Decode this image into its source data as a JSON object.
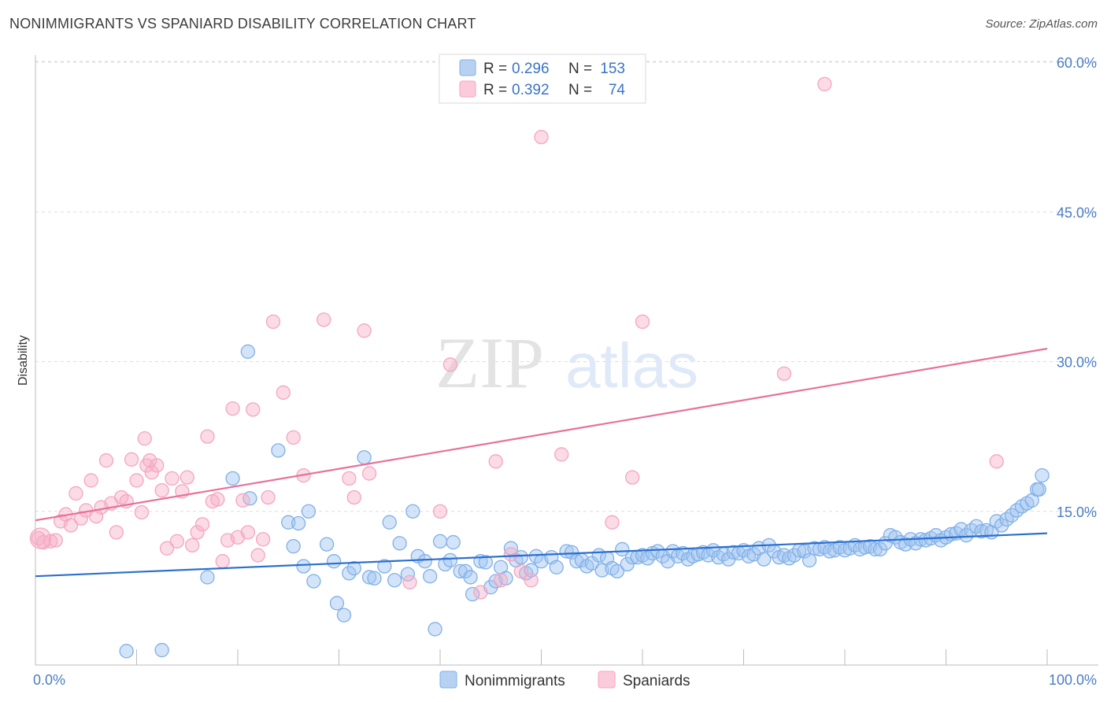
{
  "header": {
    "title": "NONIMMIGRANTS VS SPANIARD DISABILITY CORRELATION CHART",
    "source": "Source: ZipAtlas.com"
  },
  "watermark": {
    "zip": "ZIP",
    "atlas": "atlas"
  },
  "chart_data": {
    "type": "scatter",
    "title": "NONIMMIGRANTS VS SPANIARD DISABILITY CORRELATION CHART",
    "xlabel": "",
    "ylabel": "Disability",
    "xlim": [
      0,
      100
    ],
    "ylim": [
      0,
      63
    ],
    "x_tick_labels": [
      "0.0%",
      "100.0%"
    ],
    "y_ticks": [
      15,
      30,
      45,
      60
    ],
    "y_tick_labels": [
      "15.0%",
      "30.0%",
      "45.0%",
      "60.0%"
    ],
    "grid": true,
    "legend_placement": "top-center",
    "stats": [
      {
        "r_label": "R = ",
        "r": "0.296",
        "n_label": "N = ",
        "n": "153"
      },
      {
        "r_label": "R = ",
        "r": "0.392",
        "n_label": "N = ",
        "n": "74"
      }
    ],
    "series": [
      {
        "name": "Nonimmigrants",
        "color": "#7fb0e8",
        "line_color": "#2b6fd0",
        "trend": [
          [
            0,
            8.5
          ],
          [
            100,
            12.8
          ]
        ],
        "points": [
          [
            9,
            1
          ],
          [
            12.5,
            1.1
          ],
          [
            17,
            8.4
          ],
          [
            19.5,
            18.3
          ],
          [
            21,
            31
          ],
          [
            21.2,
            16.3
          ],
          [
            24,
            21.1
          ],
          [
            25,
            13.9
          ],
          [
            25.5,
            11.5
          ],
          [
            26,
            13.8
          ],
          [
            26.5,
            9.5
          ],
          [
            27,
            15
          ],
          [
            27.5,
            8
          ],
          [
            28.8,
            11.7
          ],
          [
            29.5,
            10
          ],
          [
            29.8,
            5.8
          ],
          [
            30.5,
            4.6
          ],
          [
            31,
            8.8
          ],
          [
            31.5,
            9.3
          ],
          [
            32.5,
            20.4
          ],
          [
            33,
            8.4
          ],
          [
            33.5,
            8.3
          ],
          [
            34.5,
            9.5
          ],
          [
            35,
            13.9
          ],
          [
            35.5,
            8.1
          ],
          [
            36,
            11.8
          ],
          [
            36.8,
            8.7
          ],
          [
            37.3,
            15
          ],
          [
            37.8,
            10.5
          ],
          [
            38.5,
            10
          ],
          [
            39,
            8.5
          ],
          [
            39.5,
            3.2
          ],
          [
            40,
            12
          ],
          [
            40.5,
            9.7
          ],
          [
            41,
            10.1
          ],
          [
            41.3,
            11.9
          ],
          [
            42,
            9
          ],
          [
            42.5,
            9
          ],
          [
            43,
            8.4
          ],
          [
            43.2,
            6.7
          ],
          [
            44,
            10
          ],
          [
            44.5,
            9.9
          ],
          [
            45,
            7.4
          ],
          [
            45.5,
            8
          ],
          [
            46,
            9.4
          ],
          [
            46.5,
            8.3
          ],
          [
            47,
            11.3
          ],
          [
            47.5,
            10.1
          ],
          [
            48,
            10.4
          ],
          [
            48.5,
            8.8
          ],
          [
            49,
            9.1
          ],
          [
            49.5,
            10.5
          ],
          [
            50,
            10
          ],
          [
            51,
            10.4
          ],
          [
            51.5,
            9.4
          ],
          [
            52.5,
            11
          ],
          [
            53,
            10.9
          ],
          [
            53.5,
            10
          ],
          [
            54,
            10.1
          ],
          [
            54.5,
            9.5
          ],
          [
            55,
            9.8
          ],
          [
            55.7,
            10.6
          ],
          [
            56,
            9.1
          ],
          [
            56.5,
            10.3
          ],
          [
            57,
            9.3
          ],
          [
            57.5,
            9
          ],
          [
            58,
            11.2
          ],
          [
            58.5,
            9.7
          ],
          [
            59,
            10.4
          ],
          [
            59.5,
            10.4
          ],
          [
            60,
            10.6
          ],
          [
            60.5,
            10.3
          ],
          [
            61,
            10.8
          ],
          [
            61.5,
            11
          ],
          [
            62,
            10.5
          ],
          [
            62.5,
            10
          ],
          [
            63,
            11
          ],
          [
            63.5,
            10.5
          ],
          [
            64,
            10.8
          ],
          [
            64.5,
            10.2
          ],
          [
            65,
            10.5
          ],
          [
            65.5,
            10.7
          ],
          [
            66,
            10.9
          ],
          [
            66.5,
            10.6
          ],
          [
            67,
            11.1
          ],
          [
            67.5,
            10.4
          ],
          [
            68,
            10.7
          ],
          [
            68.5,
            10.2
          ],
          [
            69,
            10.9
          ],
          [
            69.5,
            10.8
          ],
          [
            70,
            11.1
          ],
          [
            70.5,
            10.5
          ],
          [
            71,
            10.7
          ],
          [
            71.5,
            11.3
          ],
          [
            72,
            10.2
          ],
          [
            72.5,
            11.6
          ],
          [
            73,
            11
          ],
          [
            73.5,
            10.4
          ],
          [
            74,
            10.6
          ],
          [
            74.5,
            10.3
          ],
          [
            75,
            10.6
          ],
          [
            75.5,
            11.1
          ],
          [
            76,
            11
          ],
          [
            76.5,
            10.1
          ],
          [
            77,
            11.3
          ],
          [
            77.5,
            11.2
          ],
          [
            78,
            11.4
          ],
          [
            78.5,
            11
          ],
          [
            79,
            11.1
          ],
          [
            79.5,
            11.4
          ],
          [
            80,
            11.1
          ],
          [
            80.5,
            11.3
          ],
          [
            81,
            11.6
          ],
          [
            81.5,
            11.2
          ],
          [
            82,
            11.4
          ],
          [
            82.5,
            11.5
          ],
          [
            83,
            11.2
          ],
          [
            83.5,
            11.2
          ],
          [
            84,
            11.8
          ],
          [
            84.5,
            12.6
          ],
          [
            85,
            12.4
          ],
          [
            85.5,
            11.9
          ],
          [
            86,
            11.7
          ],
          [
            86.5,
            12.2
          ],
          [
            87,
            11.8
          ],
          [
            87.5,
            12.2
          ],
          [
            88,
            12.1
          ],
          [
            88.5,
            12.3
          ],
          [
            89,
            12.6
          ],
          [
            89.5,
            12.1
          ],
          [
            90,
            12.4
          ],
          [
            90.5,
            12.7
          ],
          [
            91,
            12.8
          ],
          [
            91.5,
            13.2
          ],
          [
            92,
            12.6
          ],
          [
            92.5,
            13.1
          ],
          [
            93,
            13.5
          ],
          [
            93.5,
            13
          ],
          [
            94,
            13.1
          ],
          [
            94.5,
            12.9
          ],
          [
            95,
            14
          ],
          [
            95.5,
            13.6
          ],
          [
            96,
            14.2
          ],
          [
            96.5,
            14.6
          ],
          [
            97,
            15.1
          ],
          [
            97.5,
            15.5
          ],
          [
            98,
            15.8
          ],
          [
            98.5,
            16.1
          ],
          [
            99,
            17.2
          ],
          [
            99.2,
            17.2
          ],
          [
            99.5,
            18.6
          ]
        ]
      },
      {
        "name": "Spaniards",
        "color": "#f4a6bf",
        "line_color": "#e8709a",
        "trend": [
          [
            0,
            14.1
          ],
          [
            100,
            31.3
          ]
        ],
        "points": [
          [
            0.3,
            12.3
          ],
          [
            0.8,
            11.9
          ],
          [
            1.5,
            12
          ],
          [
            2,
            12.1
          ],
          [
            2.5,
            14
          ],
          [
            3,
            14.7
          ],
          [
            3.5,
            13.6
          ],
          [
            4,
            16.8
          ],
          [
            4.5,
            14.3
          ],
          [
            5,
            15.1
          ],
          [
            5.5,
            18.1
          ],
          [
            6,
            14.5
          ],
          [
            6.5,
            15.4
          ],
          [
            7,
            20.1
          ],
          [
            7.5,
            15.8
          ],
          [
            8,
            12.9
          ],
          [
            8.5,
            16.4
          ],
          [
            9,
            16
          ],
          [
            9.5,
            20.2
          ],
          [
            10,
            18.1
          ],
          [
            10.5,
            14.9
          ],
          [
            10.8,
            22.3
          ],
          [
            11,
            19.6
          ],
          [
            11.3,
            20.1
          ],
          [
            11.5,
            18.9
          ],
          [
            12,
            19.6
          ],
          [
            12.5,
            17.1
          ],
          [
            13,
            11.3
          ],
          [
            13.5,
            18.3
          ],
          [
            14,
            12
          ],
          [
            14.5,
            17
          ],
          [
            15,
            18.4
          ],
          [
            15.5,
            11.6
          ],
          [
            16,
            12.9
          ],
          [
            16.5,
            13.7
          ],
          [
            17,
            22.5
          ],
          [
            17.5,
            16
          ],
          [
            18,
            16.2
          ],
          [
            18.5,
            10
          ],
          [
            19,
            12.1
          ],
          [
            19.5,
            25.3
          ],
          [
            20,
            12.4
          ],
          [
            20.5,
            16.1
          ],
          [
            21,
            12.9
          ],
          [
            21.5,
            25.2
          ],
          [
            22,
            10.6
          ],
          [
            22.5,
            12.2
          ],
          [
            23,
            16.4
          ],
          [
            23.5,
            34
          ],
          [
            24.5,
            26.9
          ],
          [
            25.5,
            22.4
          ],
          [
            26.5,
            18.6
          ],
          [
            28.5,
            34.2
          ],
          [
            31,
            18.3
          ],
          [
            31.5,
            16.4
          ],
          [
            32.5,
            33.1
          ],
          [
            33,
            18.8
          ],
          [
            37,
            7.9
          ],
          [
            40,
            15
          ],
          [
            41,
            29.7
          ],
          [
            44,
            6.9
          ],
          [
            45.5,
            20
          ],
          [
            46,
            8.1
          ],
          [
            47,
            10.7
          ],
          [
            48,
            9
          ],
          [
            49,
            8.1
          ],
          [
            50,
            52.5
          ],
          [
            52,
            20.7
          ],
          [
            57,
            13.9
          ],
          [
            59,
            18.4
          ],
          [
            60,
            34
          ],
          [
            74,
            28.8
          ],
          [
            78,
            57.8
          ],
          [
            95,
            20
          ]
        ]
      }
    ]
  }
}
